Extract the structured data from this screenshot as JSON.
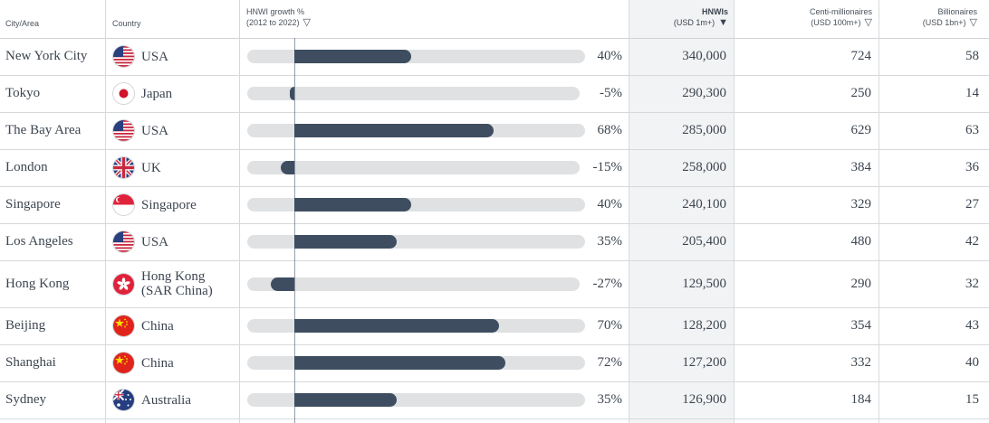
{
  "header": {
    "city": "City/Area",
    "country": "Country",
    "growth_line1": "HNWI growth %",
    "growth_line2": "(2012 to 2022)",
    "hnwi_line1": "HNWIs",
    "hnwi_line2": "(USD 1m+)",
    "centi_line1": "Centi-millionaires",
    "centi_line2": "(USD 100m+)",
    "bill_line1": "Billionaires",
    "bill_line2": "(USD 1bn+)"
  },
  "colors": {
    "bar": "#3e4e60",
    "track": "#dfe1e3",
    "highlight_col": "#f2f3f4"
  },
  "chart_data": {
    "type": "table",
    "columns": [
      "City/Area",
      "Country",
      "HNWI growth % (2012 to 2022)",
      "HNWIs (USD 1m+)",
      "Centi-millionaires (USD 100m+)",
      "Billionaires (USD 1bn+)"
    ],
    "sorted_by": "HNWIs (USD 1m+)",
    "rows": [
      {
        "city": "New York City",
        "country": [
          "USA"
        ],
        "flag": "usa-flag-icon",
        "growth": 40,
        "growth_label": "40%",
        "hnwi": "340,000",
        "centi": "724",
        "bill": "58"
      },
      {
        "city": "Tokyo",
        "country": [
          "Japan"
        ],
        "flag": "japan-flag-icon",
        "growth": -5,
        "growth_label": "-5%",
        "hnwi": "290,300",
        "centi": "250",
        "bill": "14"
      },
      {
        "city": "The Bay Area",
        "country": [
          "USA"
        ],
        "flag": "usa-flag-icon",
        "growth": 68,
        "growth_label": "68%",
        "hnwi": "285,000",
        "centi": "629",
        "bill": "63"
      },
      {
        "city": "London",
        "country": [
          "UK"
        ],
        "flag": "uk-flag-icon",
        "growth": -15,
        "growth_label": "-15%",
        "hnwi": "258,000",
        "centi": "384",
        "bill": "36"
      },
      {
        "city": "Singapore",
        "country": [
          "Singapore"
        ],
        "flag": "singapore-flag-icon",
        "growth": 40,
        "growth_label": "40%",
        "hnwi": "240,100",
        "centi": "329",
        "bill": "27"
      },
      {
        "city": "Los Angeles",
        "country": [
          "USA"
        ],
        "flag": "usa-flag-icon",
        "growth": 35,
        "growth_label": "35%",
        "hnwi": "205,400",
        "centi": "480",
        "bill": "42"
      },
      {
        "city": "Hong Kong",
        "country": [
          "Hong Kong",
          "(SAR China)"
        ],
        "flag": "hong-kong-flag-icon",
        "growth": -27,
        "growth_label": "-27%",
        "hnwi": "129,500",
        "centi": "290",
        "bill": "32"
      },
      {
        "city": "Beijing",
        "country": [
          "China"
        ],
        "flag": "china-flag-icon",
        "growth": 70,
        "growth_label": "70%",
        "hnwi": "128,200",
        "centi": "354",
        "bill": "43"
      },
      {
        "city": "Shanghai",
        "country": [
          "China"
        ],
        "flag": "china-flag-icon",
        "growth": 72,
        "growth_label": "72%",
        "hnwi": "127,200",
        "centi": "332",
        "bill": "40"
      },
      {
        "city": "Sydney",
        "country": [
          "Australia"
        ],
        "flag": "australia-flag-icon",
        "growth": 35,
        "growth_label": "35%",
        "hnwi": "126,900",
        "centi": "184",
        "bill": "15"
      }
    ]
  }
}
